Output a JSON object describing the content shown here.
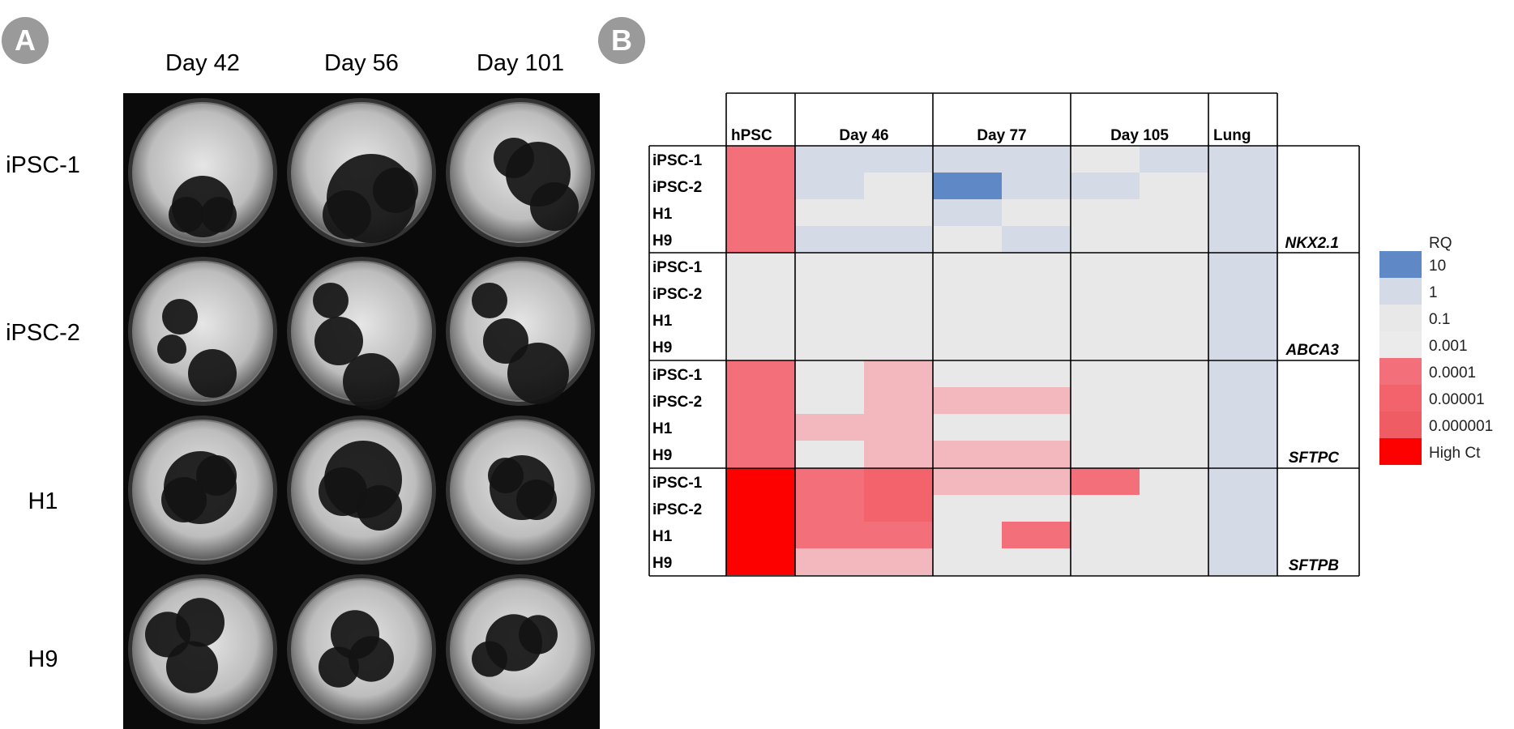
{
  "panel_a": {
    "label": "A",
    "columns": [
      "Day 42",
      "Day 56",
      "Day 101"
    ],
    "rows": [
      "iPSC-1",
      "iPSC-2",
      "H1",
      "H9"
    ]
  },
  "panel_b": {
    "label": "B",
    "chart_data": {
      "type": "heatmap",
      "column_groups": [
        {
          "label": "hPSC",
          "subcolumns": 1
        },
        {
          "label": "Day 46",
          "subcolumns": 2
        },
        {
          "label": "Day 77",
          "subcolumns": 2
        },
        {
          "label": "Day 105",
          "subcolumns": 2
        },
        {
          "label": "Lung",
          "subcolumns": 1
        }
      ],
      "row_labels": [
        "iPSC-1",
        "iPSC-2",
        "H1",
        "H9"
      ],
      "genes": [
        {
          "name": "NKX2.1",
          "cells": [
            [
              "0.0001",
              "1",
              "1",
              "1",
              "1",
              "0.1",
              "1",
              "1"
            ],
            [
              "0.0001",
              "1",
              "0.1",
              "10",
              "1",
              "1",
              "0.1",
              "1"
            ],
            [
              "0.0001",
              "0.1",
              "0.1",
              "1",
              "0.1",
              "0.1",
              "0.1",
              "1"
            ],
            [
              "0.0001",
              "1",
              "1",
              "0.1",
              "1",
              "0.1",
              "0.1",
              "1"
            ]
          ]
        },
        {
          "name": "ABCA3",
          "cells": [
            [
              "0.1",
              "0.1",
              "0.1",
              "0.1",
              "0.1",
              "0.1",
              "0.1",
              "1"
            ],
            [
              "0.1",
              "0.1",
              "0.1",
              "0.1",
              "0.1",
              "0.1",
              "0.1",
              "1"
            ],
            [
              "0.1",
              "0.1",
              "0.1",
              "0.1",
              "0.1",
              "0.1",
              "0.1",
              "1"
            ],
            [
              "0.1",
              "0.1",
              "0.1",
              "0.1",
              "0.1",
              "0.1",
              "0.1",
              "1"
            ]
          ]
        },
        {
          "name": "SFTPC",
          "cells": [
            [
              "0.0001",
              "0.1",
              "0.001",
              "0.1",
              "0.1",
              "0.1",
              "0.1",
              "1"
            ],
            [
              "0.0001",
              "0.1",
              "0.001",
              "0.001",
              "0.001",
              "0.1",
              "0.1",
              "1"
            ],
            [
              "0.0001",
              "0.001",
              "0.001",
              "0.1",
              "0.1",
              "0.1",
              "0.1",
              "1"
            ],
            [
              "0.0001",
              "0.1",
              "0.001",
              "0.001",
              "0.001",
              "0.1",
              "0.1",
              "1"
            ]
          ]
        },
        {
          "name": "SFTPB",
          "cells": [
            [
              "High Ct",
              "0.0001",
              "0.00001",
              "0.001",
              "0.001",
              "0.0001",
              "0.1",
              "1"
            ],
            [
              "High Ct",
              "0.0001",
              "0.00001",
              "0.1",
              "0.1",
              "0.1",
              "0.1",
              "1"
            ],
            [
              "High Ct",
              "0.0001",
              "0.0001",
              "0.1",
              "0.0001",
              "0.1",
              "0.1",
              "1"
            ],
            [
              "High Ct",
              "0.001",
              "0.001",
              "0.1",
              "0.1",
              "0.1",
              "0.1",
              "1"
            ]
          ]
        }
      ],
      "legend": {
        "title": "RQ",
        "items": [
          {
            "label": "10",
            "color": "#5e88c6"
          },
          {
            "label": "1",
            "color": "#d5dbe6"
          },
          {
            "label": "0.1",
            "color": "#e8e8e8"
          },
          {
            "label": "0.001",
            "color": "#ebebeb"
          },
          {
            "label": "0.0001",
            "color": "#f3707a"
          },
          {
            "label": "0.00001",
            "color": "#f2636c"
          },
          {
            "label": "0.000001",
            "color": "#f05c63"
          },
          {
            "label": "High Ct",
            "color": "#fd0000"
          }
        ]
      }
    }
  },
  "colors": {
    "badge": "#9a9a9a",
    "grid_line": "#000000",
    "cell_0.001_pink": "#f2b8bd"
  }
}
